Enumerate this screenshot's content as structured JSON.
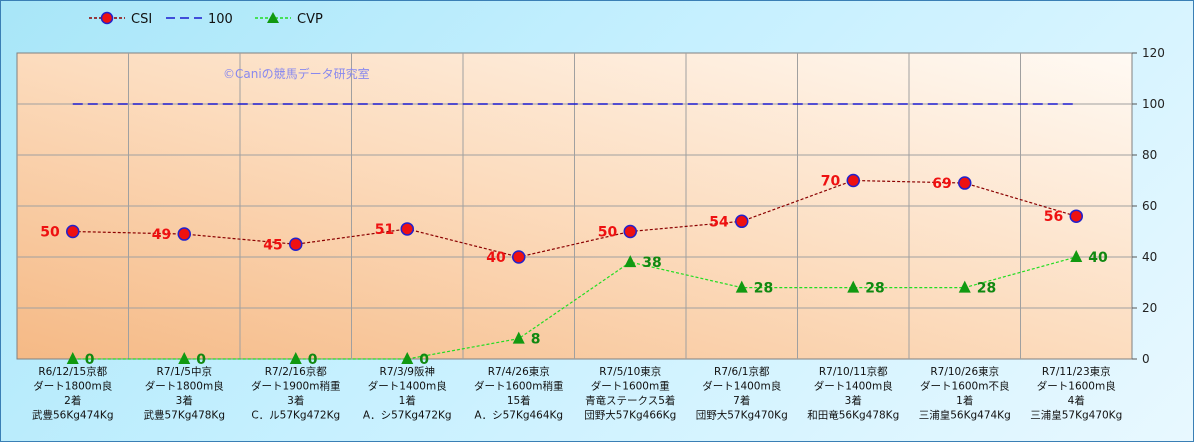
{
  "chart_data": {
    "type": "line",
    "watermark": "©Caniの競馬データ研究室",
    "legend_position": "top-left",
    "ylim": [
      0,
      120
    ],
    "yticks": [
      0,
      20,
      40,
      60,
      80,
      100,
      120
    ],
    "grid": true,
    "categories": [
      [
        "R6/12/15京都",
        "ダート1800m良",
        "2着",
        "武豊56Kg474Kg"
      ],
      [
        "R7/1/5中京",
        "ダート1800m良",
        "3着",
        "武豊57Kg478Kg"
      ],
      [
        "R7/2/16京都",
        "ダート1900m稍重",
        "3着",
        "C．ル57Kg472Kg"
      ],
      [
        "R7/3/9阪神",
        "ダート1400m良",
        "1着",
        "A．シ57Kg472Kg"
      ],
      [
        "R7/4/26東京",
        "ダート1600m稍重",
        "15着",
        "A．シ57Kg464Kg"
      ],
      [
        "R7/5/10東京",
        "ダート1600m重",
        "青竜ステークス5着",
        "団野大57Kg466Kg"
      ],
      [
        "R7/6/1京都",
        "ダート1400m良",
        "7着",
        "団野大57Kg470Kg"
      ],
      [
        "R7/10/11京都",
        "ダート1400m良",
        "3着",
        "和田竜56Kg478Kg"
      ],
      [
        "R7/10/26東京",
        "ダート1600m不良",
        "1着",
        "三浦皇56Kg474Kg"
      ],
      [
        "R7/11/23東京",
        "ダート1600m良",
        "4着",
        "三浦皇57Kg470Kg"
      ]
    ],
    "series": [
      {
        "name": "CSI",
        "values": [
          50,
          49,
          45,
          51,
          40,
          50,
          54,
          70,
          69,
          56
        ],
        "color": "#8b0000",
        "marker_fill": "#ee1111",
        "marker_edge": "#2222cc",
        "label_color": "#ee1111",
        "marker": "circle"
      },
      {
        "name": "100",
        "values": [
          100,
          100,
          100,
          100,
          100,
          100,
          100,
          100,
          100,
          100
        ],
        "color": "#1a1ad0",
        "marker": "none"
      },
      {
        "name": "CVP",
        "values": [
          0,
          0,
          0,
          0,
          8,
          38,
          28,
          28,
          28,
          40
        ],
        "color": "#22dd22",
        "marker_fill": "#119911",
        "label_color": "#118811",
        "marker": "triangle"
      }
    ]
  }
}
